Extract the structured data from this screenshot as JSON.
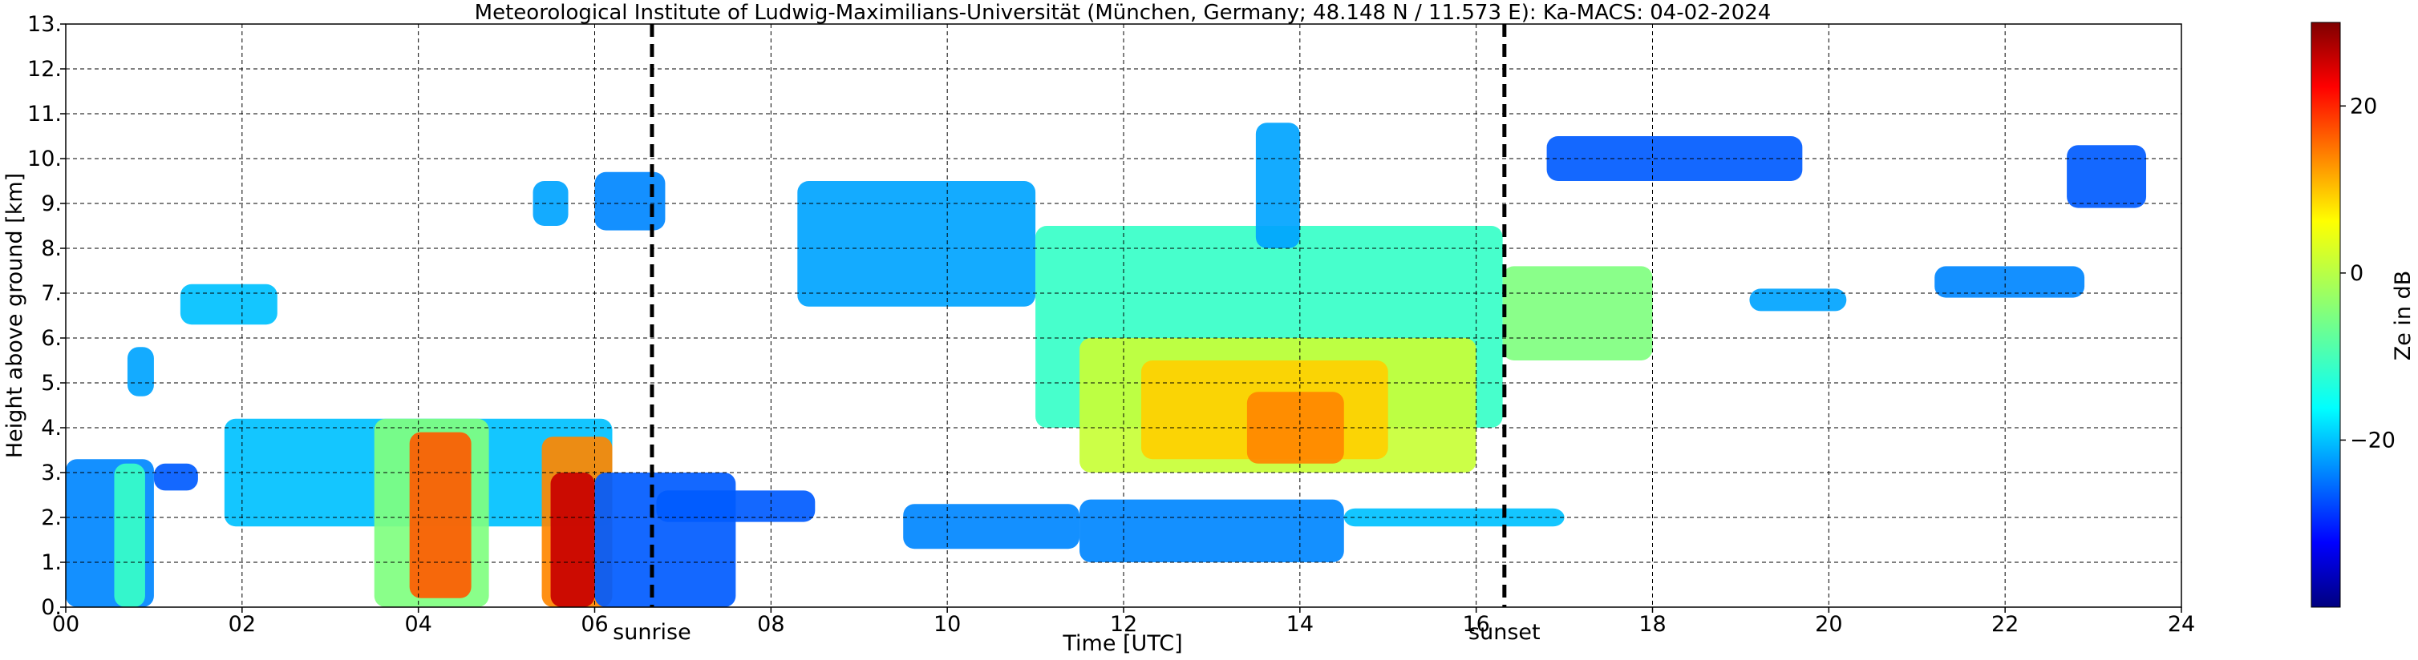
{
  "chart_data": {
    "type": "heatmap",
    "title": "Meteorological Institute of Ludwig-Maximilians-Universität (München, Germany; 48.148 N / 11.573 E):    Ka-MACS: 04-02-2024",
    "xlabel": "Time [UTC]",
    "ylabel": "Height above ground [km]",
    "xlim": [
      0,
      24
    ],
    "ylim": [
      0,
      13
    ],
    "x_ticks": [
      0,
      2,
      4,
      6,
      8,
      10,
      12,
      14,
      16,
      18,
      20,
      22,
      24
    ],
    "x_tick_labels": [
      "00",
      "02",
      "04",
      "06",
      "08",
      "10",
      "12",
      "14",
      "16",
      "18",
      "20",
      "22",
      "24"
    ],
    "y_ticks": [
      0,
      1,
      2,
      3,
      4,
      5,
      6,
      7,
      8,
      9,
      10,
      11,
      12,
      13
    ],
    "y_tick_labels": [
      "0.",
      "1.",
      "2.",
      "3.",
      "4.",
      "5.",
      "6.",
      "7.",
      "8.",
      "9.",
      "10.",
      "11.",
      "12.",
      "13."
    ],
    "grid": true,
    "colorbar": {
      "label": "Ze in dB",
      "range": [
        -40,
        30
      ],
      "ticks": [
        -20,
        0,
        20
      ],
      "tick_labels": [
        "−20",
        "0",
        "20"
      ],
      "colormap": "jet"
    },
    "markers": [
      {
        "name": "sunrise",
        "label": "sunrise",
        "time": 6.65
      },
      {
        "name": "sunset",
        "label": "sunset",
        "time": 16.32
      }
    ],
    "echo_regions": [
      {
        "t0": 0.0,
        "t1": 1.0,
        "h0": 0.0,
        "h1": 3.3,
        "ze": -22
      },
      {
        "t0": 0.55,
        "t1": 0.9,
        "h0": 0.0,
        "h1": 3.2,
        "ze": -10
      },
      {
        "t0": 1.0,
        "t1": 1.5,
        "h0": 2.6,
        "h1": 3.2,
        "ze": -25
      },
      {
        "t0": 0.7,
        "t1": 1.0,
        "h0": 4.7,
        "h1": 5.8,
        "ze": -20
      },
      {
        "t0": 1.3,
        "t1": 2.4,
        "h0": 6.3,
        "h1": 7.2,
        "ze": -18
      },
      {
        "t0": 1.8,
        "t1": 6.2,
        "h0": 1.8,
        "h1": 4.2,
        "ze": -18
      },
      {
        "t0": 3.5,
        "t1": 4.8,
        "h0": 0.0,
        "h1": 4.2,
        "ze": -5
      },
      {
        "t0": 3.9,
        "t1": 4.6,
        "h0": 0.2,
        "h1": 3.9,
        "ze": 15
      },
      {
        "t0": 5.4,
        "t1": 6.2,
        "h0": 0.0,
        "h1": 3.8,
        "ze": 12
      },
      {
        "t0": 5.5,
        "t1": 6.0,
        "h0": 0.0,
        "h1": 3.0,
        "ze": 25
      },
      {
        "t0": 6.0,
        "t1": 7.6,
        "h0": 0.0,
        "h1": 3.0,
        "ze": -25
      },
      {
        "t0": 5.3,
        "t1": 5.7,
        "h0": 8.5,
        "h1": 9.5,
        "ze": -20
      },
      {
        "t0": 6.0,
        "t1": 6.8,
        "h0": 8.4,
        "h1": 9.7,
        "ze": -22
      },
      {
        "t0": 6.7,
        "t1": 8.5,
        "h0": 1.9,
        "h1": 2.6,
        "ze": -25
      },
      {
        "t0": 8.3,
        "t1": 11.0,
        "h0": 6.7,
        "h1": 9.5,
        "ze": -20
      },
      {
        "t0": 9.5,
        "t1": 11.5,
        "h0": 1.3,
        "h1": 2.3,
        "ze": -22
      },
      {
        "t0": 11.0,
        "t1": 16.3,
        "h0": 4.0,
        "h1": 8.5,
        "ze": -10
      },
      {
        "t0": 11.5,
        "t1": 16.0,
        "h0": 3.0,
        "h1": 6.0,
        "ze": 0
      },
      {
        "t0": 12.2,
        "t1": 15.0,
        "h0": 3.3,
        "h1": 5.5,
        "ze": 7
      },
      {
        "t0": 13.4,
        "t1": 14.5,
        "h0": 3.2,
        "h1": 4.8,
        "ze": 12
      },
      {
        "t0": 13.5,
        "t1": 14.0,
        "h0": 8.0,
        "h1": 10.8,
        "ze": -20
      },
      {
        "t0": 11.5,
        "t1": 14.5,
        "h0": 1.0,
        "h1": 2.4,
        "ze": -22
      },
      {
        "t0": 14.5,
        "t1": 17.0,
        "h0": 1.8,
        "h1": 2.2,
        "ze": -18
      },
      {
        "t0": 16.3,
        "t1": 18.0,
        "h0": 5.5,
        "h1": 7.6,
        "ze": -5
      },
      {
        "t0": 16.8,
        "t1": 19.7,
        "h0": 9.5,
        "h1": 10.5,
        "ze": -25
      },
      {
        "t0": 19.1,
        "t1": 20.2,
        "h0": 6.6,
        "h1": 7.1,
        "ze": -20
      },
      {
        "t0": 21.2,
        "t1": 22.9,
        "h0": 6.9,
        "h1": 7.6,
        "ze": -22
      },
      {
        "t0": 22.7,
        "t1": 23.6,
        "h0": 8.9,
        "h1": 10.3,
        "ze": -25
      }
    ]
  }
}
